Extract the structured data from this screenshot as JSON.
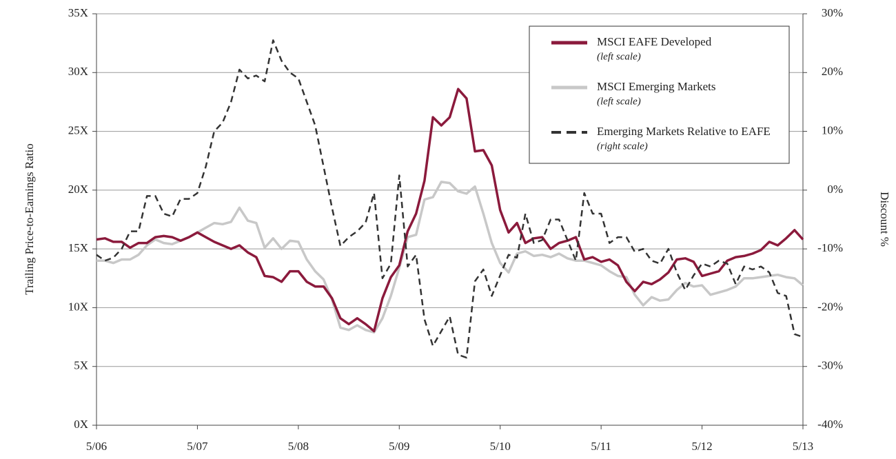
{
  "chart_data": {
    "type": "line",
    "y_axis_label": "Trailing Price-to-Earnings Ratio",
    "y2_axis_label": "Discount %",
    "categories": [
      "5/06",
      null,
      null,
      null,
      null,
      null,
      null,
      null,
      null,
      null,
      null,
      null,
      "5/07",
      null,
      null,
      null,
      null,
      null,
      null,
      null,
      null,
      null,
      null,
      null,
      "5/08",
      null,
      null,
      null,
      null,
      null,
      null,
      null,
      null,
      null,
      null,
      null,
      "5/09",
      null,
      null,
      null,
      null,
      null,
      null,
      null,
      null,
      null,
      null,
      null,
      "5/10",
      null,
      null,
      null,
      null,
      null,
      null,
      null,
      null,
      null,
      null,
      null,
      "5/11",
      null,
      null,
      null,
      null,
      null,
      null,
      null,
      null,
      null,
      null,
      null,
      "5/12",
      null,
      null,
      null,
      null,
      null,
      null,
      null,
      null,
      null,
      null,
      null,
      "5/13"
    ],
    "ylim": [
      0,
      35
    ],
    "yticks": [
      {
        "value": 0,
        "label": "0X"
      },
      {
        "value": 5,
        "label": "5X"
      },
      {
        "value": 10,
        "label": "10X"
      },
      {
        "value": 15,
        "label": "15X"
      },
      {
        "value": 20,
        "label": "20X"
      },
      {
        "value": 25,
        "label": "25X"
      },
      {
        "value": 30,
        "label": "30X"
      },
      {
        "value": 35,
        "label": "35X"
      }
    ],
    "y2lim": [
      -40,
      30
    ],
    "y2ticks": [
      {
        "value": -40,
        "label": "-40%"
      },
      {
        "value": -30,
        "label": "-30%"
      },
      {
        "value": -20,
        "label": "-20%"
      },
      {
        "value": -10,
        "label": "-10%"
      },
      {
        "value": 0,
        "label": "0%"
      },
      {
        "value": 10,
        "label": "10%"
      },
      {
        "value": 20,
        "label": "20%"
      },
      {
        "value": 30,
        "label": "30%"
      }
    ],
    "grid": true,
    "legend": "upper right",
    "series": [
      {
        "name": "MSCI EAFE Developed",
        "note": "(left scale)",
        "color": "#8b1a3c",
        "dash": false,
        "axis": "y",
        "values": [
          15.8,
          15.9,
          15.6,
          15.6,
          15.1,
          15.5,
          15.5,
          16.0,
          16.1,
          16.0,
          15.7,
          16.0,
          16.4,
          16.0,
          15.6,
          15.3,
          15.0,
          15.3,
          14.7,
          14.3,
          12.7,
          12.6,
          12.2,
          13.1,
          13.1,
          12.2,
          11.8,
          11.8,
          10.8,
          9.1,
          8.6,
          9.1,
          8.6,
          8.0,
          10.8,
          12.6,
          13.6,
          16.5,
          18.0,
          20.8,
          26.2,
          25.5,
          26.2,
          28.6,
          27.8,
          23.3,
          23.4,
          22.1,
          18.3,
          16.4,
          17.2,
          15.5,
          15.9,
          16.0,
          15.0,
          15.5,
          15.7,
          16.0,
          14.1,
          14.3,
          13.9,
          14.1,
          13.6,
          12.2,
          11.4,
          12.2,
          12.0,
          12.4,
          13.0,
          14.1,
          14.2,
          13.9,
          12.7,
          12.9,
          13.1,
          14.0,
          14.3,
          14.4,
          14.6,
          14.9,
          15.6,
          15.3,
          15.9,
          16.6,
          15.8
        ]
      },
      {
        "name": "MSCI Emerging Markets",
        "note": "(left scale)",
        "color": "#c8c8c8",
        "dash": false,
        "axis": "y",
        "values": [
          14.0,
          14.0,
          13.8,
          14.1,
          14.1,
          14.5,
          15.3,
          15.8,
          15.5,
          15.4,
          15.7,
          16.0,
          16.4,
          16.8,
          17.2,
          17.1,
          17.3,
          18.5,
          17.4,
          17.2,
          15.1,
          15.9,
          15.0,
          15.7,
          15.6,
          14.1,
          13.1,
          12.4,
          10.7,
          8.3,
          8.1,
          8.5,
          8.1,
          7.9,
          9.1,
          11.0,
          13.4,
          16.0,
          16.2,
          19.2,
          19.4,
          20.7,
          20.6,
          19.9,
          19.7,
          20.3,
          18.0,
          15.5,
          13.8,
          13.0,
          14.6,
          14.8,
          14.4,
          14.5,
          14.3,
          14.6,
          14.2,
          14.0,
          14.0,
          13.8,
          13.6,
          13.1,
          12.7,
          12.6,
          11.1,
          10.2,
          10.9,
          10.6,
          10.7,
          11.5,
          12.1,
          11.8,
          11.9,
          11.1,
          11.3,
          11.5,
          11.8,
          12.5,
          12.5,
          12.6,
          12.7,
          12.8,
          12.6,
          12.5,
          11.9
        ]
      },
      {
        "name": "Emerging Markets Relative to EAFE",
        "note": "(right scale)",
        "color": "#333333",
        "dash": true,
        "axis": "y2",
        "values": [
          -11,
          -12,
          -11.5,
          -10,
          -7,
          -7,
          -1,
          -1,
          -4,
          -4.5,
          -1.5,
          -1.5,
          -0.5,
          4,
          10,
          11.5,
          15,
          20.5,
          19,
          19.5,
          18.5,
          25.5,
          22,
          20,
          19,
          15,
          11,
          4,
          -3,
          -9.5,
          -8,
          -7,
          -5.5,
          -0.5,
          -15,
          -12.5,
          2.5,
          -13,
          -11,
          -22,
          -26.5,
          -24,
          -21.5,
          -28,
          -28.5,
          -15.5,
          -13.5,
          -18,
          -14.5,
          -11,
          -11.5,
          -4,
          -9,
          -8.5,
          -5,
          -5,
          -8.5,
          -12,
          -0.5,
          -4,
          -4,
          -9,
          -8,
          -8,
          -10.5,
          -10,
          -12,
          -12.5,
          -10,
          -14,
          -17,
          -14.5,
          -12.5,
          -13,
          -12,
          -12.5,
          -16,
          -13,
          -13.5,
          -13,
          -14,
          -17.5,
          -18,
          -24.5,
          -25
        ]
      }
    ]
  }
}
